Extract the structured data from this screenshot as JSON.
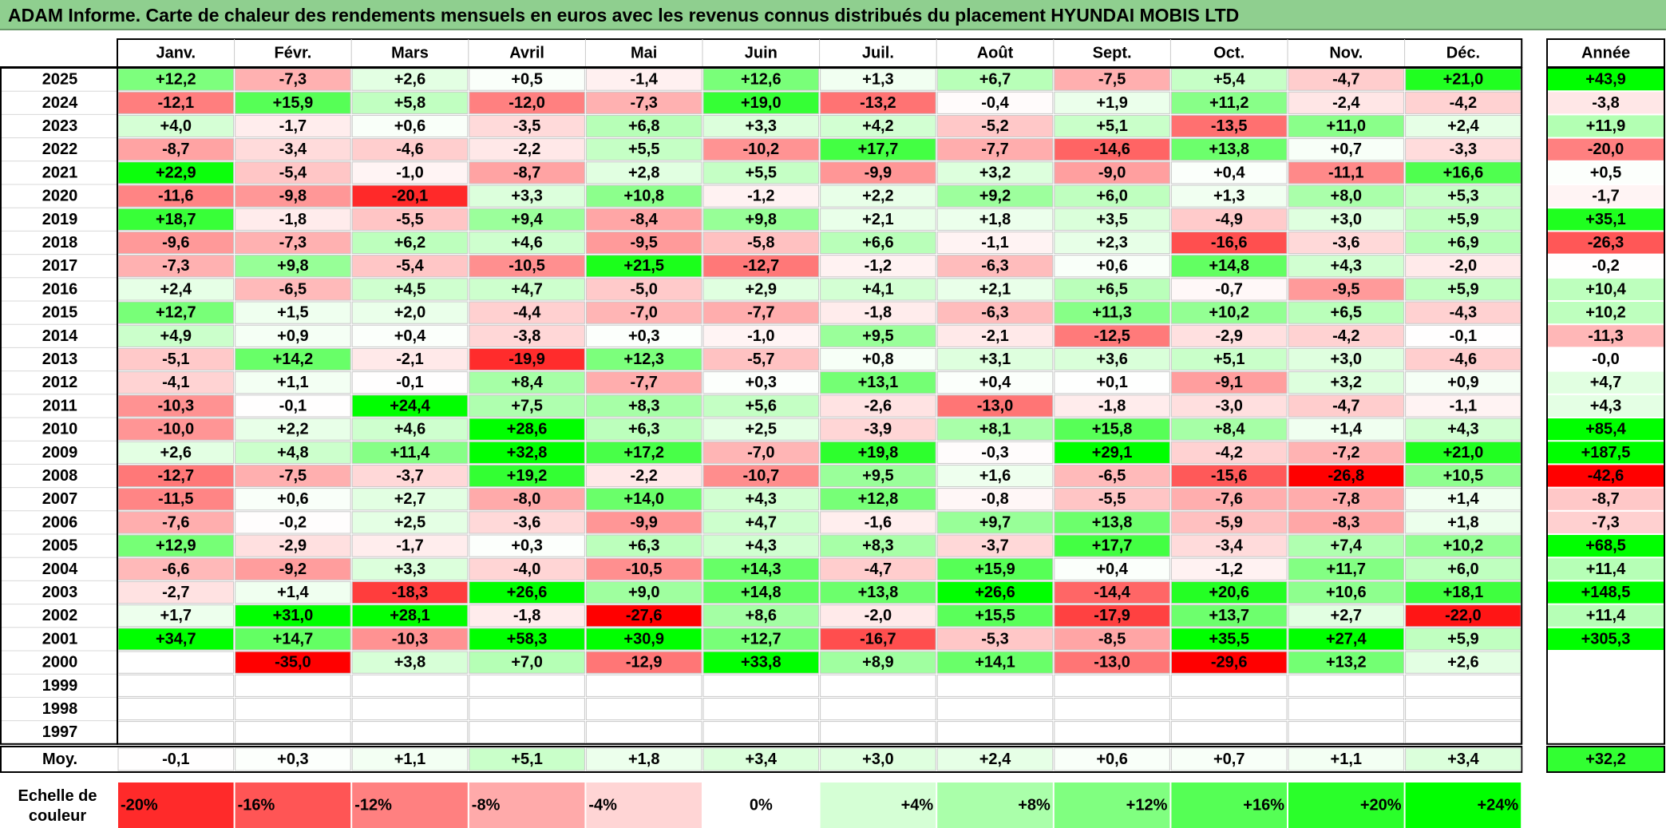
{
  "title": "ADAM Informe. Carte de chaleur des rendements mensuels en euros avec les revenus connus distribués du placement HYUNDAI MOBIS LTD",
  "chart_data": {
    "type": "heatmap",
    "title": "ADAM Informe. Carte de chaleur des rendements mensuels en euros avec les revenus connus distribués du placement HYUNDAI MOBIS LTD",
    "months": [
      "Janv.",
      "Févr.",
      "Mars",
      "Avril",
      "Mai",
      "Juin",
      "Juil.",
      "Août",
      "Sept.",
      "Oct.",
      "Nov.",
      "Déc."
    ],
    "year_header": "Année",
    "avg_label": "Moy.",
    "rows": [
      {
        "year": "2025",
        "m": [
          "+12,2",
          "-7,3",
          "+2,6",
          "+0,5",
          "-1,4",
          "+12,6",
          "+1,3",
          "+6,7",
          "-7,5",
          "+5,4",
          "-4,7",
          "+21,0"
        ],
        "annual": "+43,9"
      },
      {
        "year": "2024",
        "m": [
          "-12,1",
          "+15,9",
          "+5,8",
          "-12,0",
          "-7,3",
          "+19,0",
          "-13,2",
          "-0,4",
          "+1,9",
          "+11,2",
          "-2,4",
          "-4,2"
        ],
        "annual": "-3,8"
      },
      {
        "year": "2023",
        "m": [
          "+4,0",
          "-1,7",
          "+0,6",
          "-3,5",
          "+6,8",
          "+3,3",
          "+4,2",
          "-5,2",
          "+5,1",
          "-13,5",
          "+11,0",
          "+2,4"
        ],
        "annual": "+11,9"
      },
      {
        "year": "2022",
        "m": [
          "-8,7",
          "-3,4",
          "-4,6",
          "-2,2",
          "+5,5",
          "-10,2",
          "+17,7",
          "-7,7",
          "-14,6",
          "+13,8",
          "+0,7",
          "-3,3"
        ],
        "annual": "-20,0"
      },
      {
        "year": "2021",
        "m": [
          "+22,9",
          "-5,4",
          "-1,0",
          "-8,7",
          "+2,8",
          "+5,5",
          "-9,9",
          "+3,2",
          "-9,0",
          "+0,4",
          "-11,1",
          "+16,6"
        ],
        "annual": "+0,5"
      },
      {
        "year": "2020",
        "m": [
          "-11,6",
          "-9,8",
          "-20,1",
          "+3,3",
          "+10,8",
          "-1,2",
          "+2,2",
          "+9,2",
          "+6,0",
          "+1,3",
          "+8,0",
          "+5,3"
        ],
        "annual": "-1,7"
      },
      {
        "year": "2019",
        "m": [
          "+18,7",
          "-1,8",
          "-5,5",
          "+9,4",
          "-8,4",
          "+9,8",
          "+2,1",
          "+1,8",
          "+3,5",
          "-4,9",
          "+3,0",
          "+5,9"
        ],
        "annual": "+35,1"
      },
      {
        "year": "2018",
        "m": [
          "-9,6",
          "-7,3",
          "+6,2",
          "+4,6",
          "-9,5",
          "-5,8",
          "+6,6",
          "-1,1",
          "+2,3",
          "-16,6",
          "-3,6",
          "+6,9"
        ],
        "annual": "-26,3"
      },
      {
        "year": "2017",
        "m": [
          "-7,3",
          "+9,8",
          "-5,4",
          "-10,5",
          "+21,5",
          "-12,7",
          "-1,2",
          "-6,3",
          "+0,6",
          "+14,8",
          "+4,3",
          "-2,0"
        ],
        "annual": "-0,2"
      },
      {
        "year": "2016",
        "m": [
          "+2,4",
          "-6,5",
          "+4,5",
          "+4,7",
          "-5,0",
          "+2,9",
          "+4,1",
          "+2,1",
          "+6,5",
          "-0,7",
          "-9,5",
          "+5,9"
        ],
        "annual": "+10,4"
      },
      {
        "year": "2015",
        "m": [
          "+12,7",
          "+1,5",
          "+2,0",
          "-4,4",
          "-7,0",
          "-7,7",
          "-1,8",
          "-6,3",
          "+11,3",
          "+10,2",
          "+6,5",
          "-4,3"
        ],
        "annual": "+10,2"
      },
      {
        "year": "2014",
        "m": [
          "+4,9",
          "+0,9",
          "+0,4",
          "-3,8",
          "+0,3",
          "-1,0",
          "+9,5",
          "-2,1",
          "-12,5",
          "-2,9",
          "-4,2",
          "-0,1"
        ],
        "annual": "-11,3"
      },
      {
        "year": "2013",
        "m": [
          "-5,1",
          "+14,2",
          "-2,1",
          "-19,9",
          "+12,3",
          "-5,7",
          "+0,8",
          "+3,1",
          "+3,6",
          "+5,1",
          "+3,0",
          "-4,6"
        ],
        "annual": "-0,0"
      },
      {
        "year": "2012",
        "m": [
          "-4,1",
          "+1,1",
          "-0,1",
          "+8,4",
          "-7,7",
          "+0,3",
          "+13,1",
          "+0,4",
          "+0,1",
          "-9,1",
          "+3,2",
          "+0,9"
        ],
        "annual": "+4,7"
      },
      {
        "year": "2011",
        "m": [
          "-10,3",
          "-0,1",
          "+24,4",
          "+7,5",
          "+8,3",
          "+5,6",
          "-2,6",
          "-13,0",
          "-1,8",
          "-3,0",
          "-4,7",
          "-1,1"
        ],
        "annual": "+4,3"
      },
      {
        "year": "2010",
        "m": [
          "-10,0",
          "+2,2",
          "+4,6",
          "+28,6",
          "+6,3",
          "+2,5",
          "-3,9",
          "+8,1",
          "+15,8",
          "+8,4",
          "+1,4",
          "+4,3"
        ],
        "annual": "+85,4"
      },
      {
        "year": "2009",
        "m": [
          "+2,6",
          "+4,8",
          "+11,4",
          "+32,8",
          "+17,2",
          "-7,0",
          "+19,8",
          "-0,3",
          "+29,1",
          "-4,2",
          "-7,2",
          "+21,0"
        ],
        "annual": "+187,5"
      },
      {
        "year": "2008",
        "m": [
          "-12,7",
          "-7,5",
          "-3,7",
          "+19,2",
          "-2,2",
          "-10,7",
          "+9,5",
          "+1,6",
          "-6,5",
          "-15,6",
          "-26,8",
          "+10,5"
        ],
        "annual": "-42,6"
      },
      {
        "year": "2007",
        "m": [
          "-11,5",
          "+0,6",
          "+2,7",
          "-8,0",
          "+14,0",
          "+4,3",
          "+12,8",
          "-0,8",
          "-5,5",
          "-7,6",
          "-7,8",
          "+1,4"
        ],
        "annual": "-8,7"
      },
      {
        "year": "2006",
        "m": [
          "-7,6",
          "-0,2",
          "+2,5",
          "-3,6",
          "-9,9",
          "+4,7",
          "-1,6",
          "+9,7",
          "+13,8",
          "-5,9",
          "-8,3",
          "+1,8"
        ],
        "annual": "-7,3"
      },
      {
        "year": "2005",
        "m": [
          "+12,9",
          "-2,9",
          "-1,7",
          "+0,3",
          "+6,3",
          "+4,3",
          "+8,3",
          "-3,7",
          "+17,7",
          "-3,4",
          "+7,4",
          "+10,2"
        ],
        "annual": "+68,5"
      },
      {
        "year": "2004",
        "m": [
          "-6,6",
          "-9,2",
          "+3,3",
          "-4,0",
          "-10,5",
          "+14,3",
          "-4,7",
          "+15,9",
          "+0,4",
          "-1,2",
          "+11,7",
          "+6,0"
        ],
        "annual": "+11,4"
      },
      {
        "year": "2003",
        "m": [
          "-2,7",
          "+1,4",
          "-18,3",
          "+26,6",
          "+9,0",
          "+14,8",
          "+13,8",
          "+26,6",
          "-14,4",
          "+20,6",
          "+10,6",
          "+18,1"
        ],
        "annual": "+148,5"
      },
      {
        "year": "2002",
        "m": [
          "+1,7",
          "+31,0",
          "+28,1",
          "-1,8",
          "-27,6",
          "+8,6",
          "-2,0",
          "+15,5",
          "-17,9",
          "+13,7",
          "+2,7",
          "-22,0"
        ],
        "annual": "+11,4"
      },
      {
        "year": "2001",
        "m": [
          "+34,7",
          "+14,7",
          "-10,3",
          "+58,3",
          "+30,9",
          "+12,7",
          "-16,7",
          "-5,3",
          "-8,5",
          "+35,5",
          "+27,4",
          "+5,9"
        ],
        "annual": "+305,3"
      },
      {
        "year": "2000",
        "m": [
          "",
          "-35,0",
          "+3,8",
          "+7,0",
          "-12,9",
          "+33,8",
          "+8,9",
          "+14,1",
          "-13,0",
          "-29,6",
          "+13,2",
          "+2,6"
        ],
        "annual": ""
      },
      {
        "year": "1999",
        "m": [
          "",
          "",
          "",
          "",
          "",
          "",
          "",
          "",
          "",
          "",
          "",
          ""
        ],
        "annual": ""
      },
      {
        "year": "1998",
        "m": [
          "",
          "",
          "",
          "",
          "",
          "",
          "",
          "",
          "",
          "",
          "",
          ""
        ],
        "annual": ""
      },
      {
        "year": "1997",
        "m": [
          "",
          "",
          "",
          "",
          "",
          "",
          "",
          "",
          "",
          "",
          "",
          ""
        ],
        "annual": ""
      }
    ],
    "averages": [
      "-0,1",
      "+0,3",
      "+1,1",
      "+5,1",
      "+1,8",
      "+3,4",
      "+3,0",
      "+2,4",
      "+0,6",
      "+0,7",
      "+1,1",
      "+3,4"
    ],
    "avg_annual": "+32,2",
    "legend_label": "Echelle de couleur",
    "legend_steps": [
      "-20%",
      "-16%",
      "-12%",
      "-8%",
      "-4%",
      "0%",
      "+4%",
      "+8%",
      "+12%",
      "+16%",
      "+20%",
      "+24%"
    ],
    "colors": {
      "negative": "#ff0000",
      "zero": "#ffffff",
      "positive": "#00ff00",
      "title_bg": "#8fcf8f",
      "border": "#000000"
    }
  }
}
